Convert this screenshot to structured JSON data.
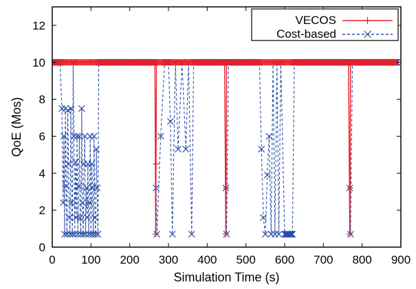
{
  "chart_data": {
    "type": "line",
    "xlabel": "Simulation Time (s)",
    "ylabel": "QoE (Mos)",
    "xlim": [
      0,
      900
    ],
    "ylim": [
      0,
      13
    ],
    "xticks": [
      0,
      100,
      200,
      300,
      400,
      500,
      600,
      700,
      800,
      900
    ],
    "yticks": [
      0,
      2,
      4,
      6,
      8,
      10,
      12
    ],
    "grid": false,
    "legend_position": "top-right",
    "colors": {
      "vecos": "#e8202a",
      "cost": "#2a4fa8"
    },
    "series": [
      {
        "name": "VECOS",
        "marker": "+",
        "line_style": "solid",
        "points": [
          [
            0,
            10
          ],
          [
            30,
            10
          ],
          [
            40,
            10
          ],
          [
            60,
            10
          ],
          [
            80,
            10
          ],
          [
            100,
            10
          ],
          [
            120,
            10
          ],
          [
            150,
            10
          ],
          [
            200,
            10
          ],
          [
            250,
            10
          ],
          [
            265,
            10
          ],
          [
            267,
            0.7
          ],
          [
            268,
            4.5
          ],
          [
            269,
            10
          ],
          [
            300,
            10
          ],
          [
            350,
            10
          ],
          [
            400,
            10
          ],
          [
            445,
            10
          ],
          [
            448,
            0.7
          ],
          [
            449,
            3.2
          ],
          [
            450,
            10
          ],
          [
            500,
            10
          ],
          [
            540,
            10
          ],
          [
            550,
            10
          ],
          [
            560,
            10
          ],
          [
            570,
            10
          ],
          [
            580,
            10
          ],
          [
            590,
            10
          ],
          [
            600,
            10
          ],
          [
            615,
            10
          ],
          [
            650,
            10
          ],
          [
            700,
            10
          ],
          [
            750,
            10
          ],
          [
            765,
            10
          ],
          [
            768,
            0.7
          ],
          [
            769,
            3.2
          ],
          [
            770,
            10
          ],
          [
            800,
            10
          ],
          [
            850,
            10
          ],
          [
            890,
            10
          ]
        ]
      },
      {
        "name": "Cost-based",
        "marker": "x",
        "line_style": "dashed",
        "points": [
          [
            0,
            10
          ],
          [
            20,
            10
          ],
          [
            25,
            7.5
          ],
          [
            28,
            2.4
          ],
          [
            30,
            6
          ],
          [
            32,
            0.7
          ],
          [
            34,
            7.5
          ],
          [
            36,
            3.3
          ],
          [
            38,
            0.7
          ],
          [
            40,
            7.4
          ],
          [
            42,
            4.5
          ],
          [
            44,
            1.6
          ],
          [
            46,
            0.7
          ],
          [
            48,
            7.5
          ],
          [
            50,
            2.4
          ],
          [
            52,
            0.7
          ],
          [
            54,
            10
          ],
          [
            56,
            6
          ],
          [
            58,
            0.7
          ],
          [
            60,
            4.6
          ],
          [
            62,
            1.6
          ],
          [
            64,
            6
          ],
          [
            66,
            0.7
          ],
          [
            68,
            3.3
          ],
          [
            70,
            6
          ],
          [
            72,
            1.6
          ],
          [
            74,
            0.7
          ],
          [
            76,
            7.5
          ],
          [
            78,
            2.4
          ],
          [
            80,
            0.7
          ],
          [
            82,
            4.5
          ],
          [
            84,
            6
          ],
          [
            86,
            0.7
          ],
          [
            88,
            3.2
          ],
          [
            90,
            1.6
          ],
          [
            92,
            4.5
          ],
          [
            94,
            0.7
          ],
          [
            96,
            2.4
          ],
          [
            98,
            6
          ],
          [
            100,
            0.7
          ],
          [
            102,
            4.5
          ],
          [
            104,
            3.2
          ],
          [
            106,
            0.7
          ],
          [
            108,
            6
          ],
          [
            110,
            1.6
          ],
          [
            112,
            0.7
          ],
          [
            114,
            5.3
          ],
          [
            116,
            3.2
          ],
          [
            118,
            0.7
          ],
          [
            120,
            10
          ],
          [
            200,
            10
          ],
          [
            265,
            10
          ],
          [
            268,
            3.2
          ],
          [
            270,
            0.7
          ],
          [
            280,
            6
          ],
          [
            290,
            10
          ],
          [
            300,
            10
          ],
          [
            305,
            6.8
          ],
          [
            310,
            0.7
          ],
          [
            318,
            10
          ],
          [
            325,
            5.3
          ],
          [
            335,
            10
          ],
          [
            345,
            5.3
          ],
          [
            352,
            10
          ],
          [
            360,
            0.7
          ],
          [
            365,
            10
          ],
          [
            400,
            10
          ],
          [
            445,
            10
          ],
          [
            448,
            3.2
          ],
          [
            450,
            0.7
          ],
          [
            455,
            10
          ],
          [
            500,
            10
          ],
          [
            535,
            10
          ],
          [
            540,
            5.3
          ],
          [
            545,
            1.6
          ],
          [
            550,
            0.7
          ],
          [
            555,
            3.9
          ],
          [
            560,
            6
          ],
          [
            565,
            0.7
          ],
          [
            570,
            10
          ],
          [
            575,
            0.7
          ],
          [
            580,
            10
          ],
          [
            585,
            0.7
          ],
          [
            590,
            10
          ],
          [
            600,
            0.7
          ],
          [
            610,
            0.7
          ],
          [
            620,
            0.7
          ],
          [
            625,
            10
          ],
          [
            700,
            10
          ],
          [
            765,
            10
          ],
          [
            768,
            3.2
          ],
          [
            770,
            0.7
          ],
          [
            775,
            10
          ],
          [
            850,
            10
          ],
          [
            890,
            10
          ]
        ]
      }
    ]
  }
}
